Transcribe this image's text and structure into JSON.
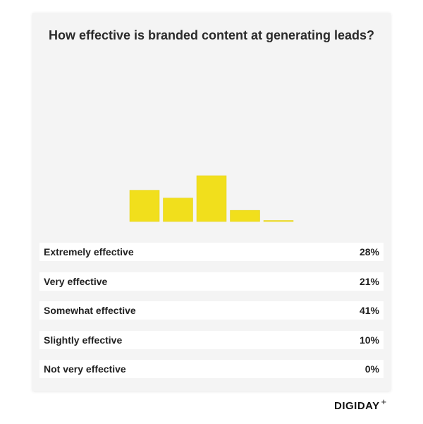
{
  "chart_data": {
    "type": "bar",
    "title": "How effective is branded content at generating leads?",
    "categories": [
      "Extremely effective",
      "Very effective",
      "Somewhat effective",
      "Slightly effective",
      "Not very effective"
    ],
    "values": [
      28,
      21,
      41,
      10,
      0
    ],
    "value_labels": [
      "28%",
      "21%",
      "41%",
      "10%",
      "0%"
    ],
    "ylim": [
      0,
      100
    ],
    "bar_color": "#f1df1c",
    "grid": false
  },
  "brand": {
    "logo": "DIGIDAY",
    "logo_suffix": "+"
  }
}
